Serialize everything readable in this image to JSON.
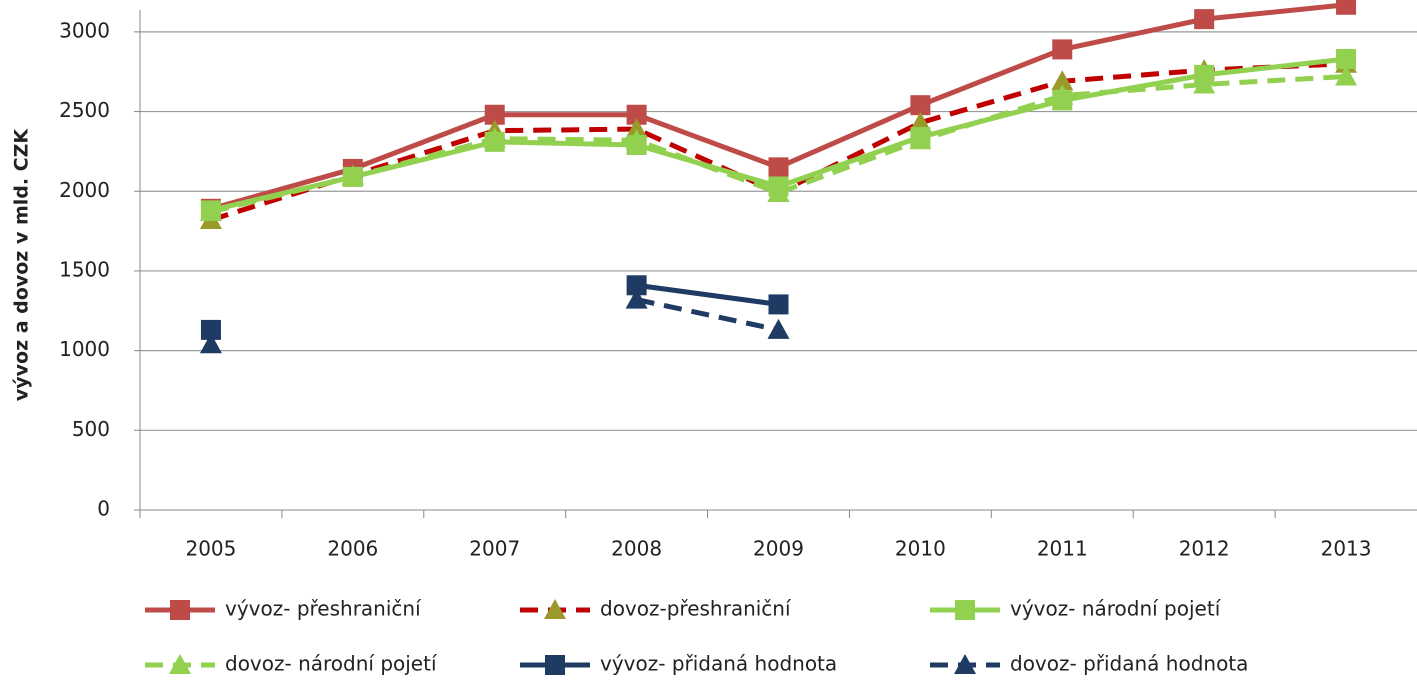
{
  "chart_data": {
    "type": "line",
    "y_label": "vývoz a dovoz  v mld. CZK",
    "categories": [
      "2005",
      "2006",
      "2007",
      "2008",
      "2009",
      "2010",
      "2011",
      "2012",
      "2013"
    ],
    "ylim": [
      0,
      3200
    ],
    "yticks": [
      0,
      500,
      1000,
      1500,
      2000,
      2500,
      3000
    ],
    "grid": true,
    "series": [
      {
        "name": "vývoz- přeshraniční",
        "color": "#be4b48",
        "dash": false,
        "marker": "square",
        "marker_color": "#be4b48",
        "values": [
          1890,
          2140,
          2480,
          2480,
          2150,
          2540,
          2890,
          3080,
          3170
        ]
      },
      {
        "name": "dovoz-přeshraniční",
        "color": "#c00000",
        "dash": true,
        "marker": "triangle",
        "marker_color": "#9a9a2a",
        "values": [
          1820,
          2100,
          2380,
          2390,
          1990,
          2430,
          2690,
          2760,
          2800
        ]
      },
      {
        "name": "vývoz- národní pojetí",
        "color": "#92d050",
        "dash": false,
        "marker": "square",
        "marker_color": "#92d050",
        "values": [
          1880,
          2090,
          2310,
          2290,
          2030,
          2340,
          2570,
          2730,
          2830
        ]
      },
      {
        "name": "dovoz- národní pojetí",
        "color": "#92d050",
        "dash": true,
        "marker": "triangle",
        "marker_color": "#92d050",
        "values": [
          1870,
          2090,
          2330,
          2320,
          1990,
          2320,
          2600,
          2670,
          2720
        ]
      },
      {
        "name": "vývoz- přidaná hodnota",
        "color": "#1f3b63",
        "dash": false,
        "marker": "square",
        "marker_color": "#1f3b63",
        "values": [
          1130,
          null,
          null,
          1410,
          1290,
          null,
          null,
          null,
          null
        ]
      },
      {
        "name": "dovoz- přidaná hodnota",
        "color": "#1f3b63",
        "dash": true,
        "marker": "triangle",
        "marker_color": "#1f3b63",
        "values": [
          1040,
          null,
          null,
          1320,
          1130,
          null,
          null,
          null,
          null
        ]
      }
    ]
  }
}
